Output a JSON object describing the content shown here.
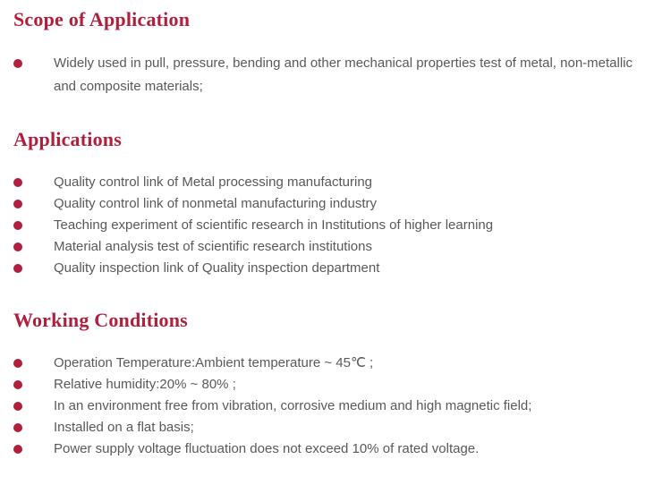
{
  "page": {
    "background": "#ffffff",
    "accent_color": "#b0203c",
    "body_text_color": "#595959"
  },
  "sections": [
    {
      "id": "scope-of-application",
      "title": "Scope of Application",
      "loose": true,
      "items": [
        "Widely used in pull, pressure, bending and other mechanical properties test of metal, non-metallic and composite materials;"
      ]
    },
    {
      "id": "applications",
      "title": "Applications",
      "loose": false,
      "items": [
        "Quality control link of Metal processing manufacturing",
        "Quality control link of nonmetal manufacturing industry",
        "Teaching experiment of scientific research in Institutions of higher learning",
        "Material analysis test of scientific research institutions",
        "Quality inspection link of Quality inspection department"
      ]
    },
    {
      "id": "working-conditions",
      "title": "Working Conditions",
      "loose": false,
      "items": [
        "Operation Temperature:Ambient temperature ~ 45℃ ;",
        "Relative humidity:20% ~ 80% ;",
        "In an environment free from vibration, corrosive medium and high magnetic field;",
        "Installed on a flat basis;",
        "Power supply voltage fluctuation does not exceed 10% of rated voltage."
      ]
    }
  ]
}
